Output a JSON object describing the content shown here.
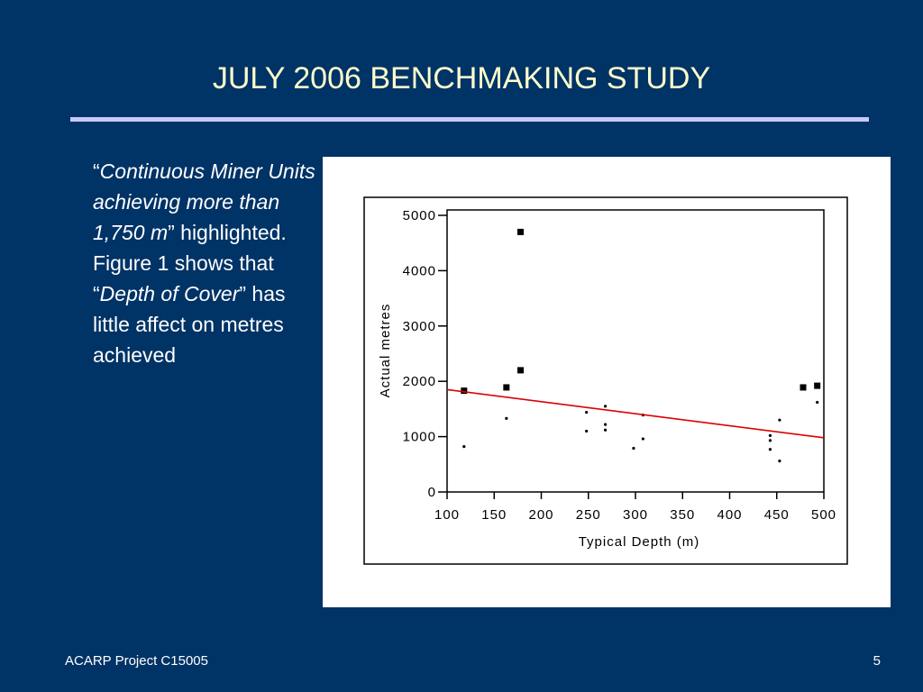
{
  "slide": {
    "title": "JULY 2006 BENCHMAKING STUDY",
    "body": {
      "open_quote_1": "“",
      "italic_1": "Continuous Miner Units achieving more than 1,750 m",
      "text_1": "” highlighted. Figure 1 shows that “",
      "italic_2": "Depth of Cover",
      "text_2": "” has little affect on metres achieved"
    },
    "footer_left": "ACARP Project C15005",
    "page_number": "5",
    "colors": {
      "background": "#003366",
      "title": "#ffffcc",
      "rule": "#c8c8ff",
      "trend": "#dd0000"
    }
  },
  "chart_data": {
    "type": "scatter",
    "xlabel": "Typical Depth (m)",
    "ylabel": "Actual metres",
    "xlim": [
      100,
      500
    ],
    "ylim": [
      0,
      5000
    ],
    "x_ticks": [
      "100",
      "150",
      "200",
      "250",
      "300",
      "350",
      "400",
      "450",
      "500"
    ],
    "y_ticks": [
      "0",
      "1000",
      "2000",
      "3000",
      "4000",
      "5000"
    ],
    "grid": false,
    "series": [
      {
        "marker": "square-large",
        "points": [
          [
            118,
            1830
          ],
          [
            163,
            1890
          ],
          [
            178,
            4700
          ],
          [
            178,
            2200
          ],
          [
            478,
            1890
          ],
          [
            493,
            1920
          ]
        ]
      },
      {
        "marker": "dot-small",
        "points": [
          [
            118,
            820
          ],
          [
            163,
            1330
          ],
          [
            248,
            1440
          ],
          [
            248,
            1100
          ],
          [
            268,
            1550
          ],
          [
            268,
            1220
          ],
          [
            268,
            1120
          ],
          [
            298,
            790
          ],
          [
            308,
            1390
          ],
          [
            308,
            960
          ],
          [
            443,
            1020
          ],
          [
            443,
            930
          ],
          [
            443,
            770
          ],
          [
            453,
            1300
          ],
          [
            453,
            560
          ],
          [
            493,
            1620
          ]
        ]
      }
    ],
    "trendline": {
      "x": [
        100,
        500
      ],
      "y": [
        1850,
        980
      ]
    }
  }
}
